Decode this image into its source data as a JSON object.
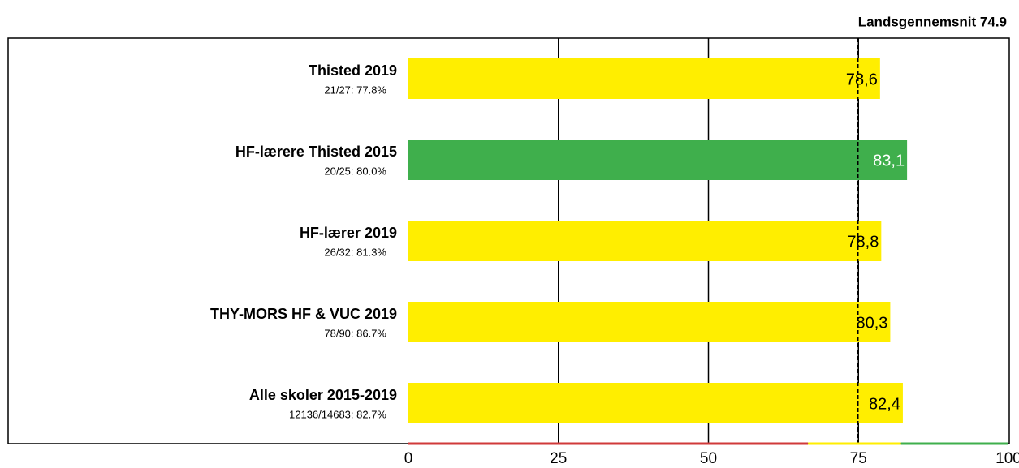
{
  "chart_data": {
    "type": "barh",
    "title": "Landsgennemsnit 74.9",
    "reference": 74.9,
    "categories": [
      "Thisted 2019",
      "HF-lærere Thisted 2015",
      "HF-lærer 2019",
      "THY-MORS HF & VUC 2019",
      "Alle skoler 2015-2019"
    ],
    "sublabels": [
      "21/27: 77.8%",
      "20/25: 80.0%",
      "26/32: 81.3%",
      "78/90: 86.7%",
      "12136/14683: 82.7%"
    ],
    "values": [
      78.6,
      83.1,
      78.8,
      80.3,
      82.4
    ],
    "value_labels": [
      "78,6",
      "83,1",
      "78,8",
      "80,3",
      "82,4"
    ],
    "colors": [
      "#ffee00",
      "#3faf4c",
      "#ffee00",
      "#ffee00",
      "#ffee00"
    ],
    "xlim": [
      0,
      100
    ],
    "xticks": [
      0,
      25,
      50,
      75,
      100
    ],
    "grid": true,
    "bands": [
      {
        "from": 0,
        "to": 66.6,
        "color": "#d03a3a"
      },
      {
        "from": 66.6,
        "to": 82.1,
        "color": "#ffee00"
      },
      {
        "from": 82.1,
        "to": 100,
        "color": "#3faf4c"
      }
    ]
  }
}
